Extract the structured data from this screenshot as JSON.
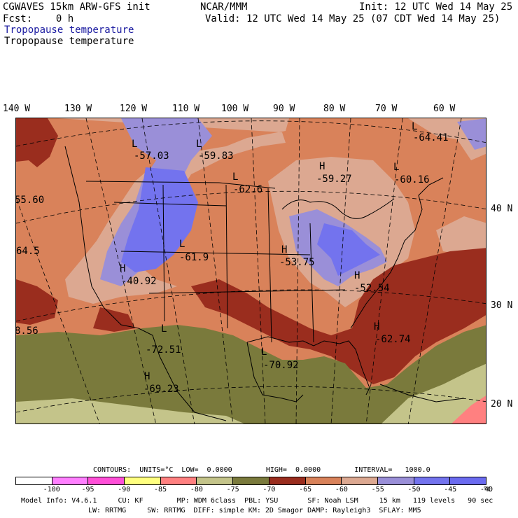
{
  "header": {
    "model": "CGWAVES 15km ARW-GFS init",
    "fcst": "Fcst:    0 h",
    "org": "NCAR/MMM",
    "init": "Init: 12 UTC Wed 14 May 25",
    "valid": "Valid: 12 UTC Wed 14 May 25 (07 CDT Wed 14 May 25)",
    "field1": "Tropopause temperature",
    "field2": "Tropopause temperature"
  },
  "longitudes": [
    "140 W",
    "130 W",
    "120 W",
    "110 W",
    "100 W",
    "90 W",
    "80 W",
    "70 W",
    "60 W"
  ],
  "latitudes": [
    "40 N",
    "30 N",
    "20 N"
  ],
  "pressure_centers": [
    {
      "type": "L",
      "value": "-57.03"
    },
    {
      "type": "L",
      "value": "-59.83"
    },
    {
      "type": "L",
      "value": "-64.41"
    },
    {
      "type": "H",
      "value": "-59.27"
    },
    {
      "type": "L",
      "value": "-60.16"
    },
    {
      "type": "L",
      "value": "-62.6"
    },
    {
      "type": "L",
      "value": "-61.9"
    },
    {
      "type": "H",
      "value": "-53.75"
    },
    {
      "type": "H",
      "value": "-40.92"
    },
    {
      "type": "H",
      "value": "-52.54"
    },
    {
      "type": "L",
      "value": "-72.51"
    },
    {
      "type": "L",
      "value": "-70.92"
    },
    {
      "type": "H",
      "value": "-62.74"
    },
    {
      "type": "H",
      "value": "-69.23"
    }
  ],
  "edge_values": [
    "55.60",
    "64.5",
    "8.56"
  ],
  "contours_line": "CONTOURS:  UNITS=°C  LOW=  0.0000        HIGH=  0.0000        INTERVAL=   1000.0",
  "colorbar": {
    "colors": [
      "#ffffff",
      "#ff7fff",
      "#ff4fd8",
      "#ffff7f",
      "#ff8080",
      "#c4c48a",
      "#7a7a3c",
      "#9a2d1e",
      "#d9825a",
      "#dca891",
      "#9a8fd8",
      "#7373ee",
      "#6b6bf0"
    ],
    "labels": [
      "-100",
      "-95",
      "-90",
      "-85",
      "-80",
      "-75",
      "-70",
      "-65",
      "-60",
      "-55",
      "-50",
      "-45",
      "-40"
    ],
    "unit": "°C"
  },
  "model_info_1": "Model Info: V4.6.1     CU: KF        MP: WDM 6class  PBL: YSU       SF: Noah LSM     15 km   119 levels   90 sec",
  "model_info_2": "LW: RRTMG     SW: RRTMG  DIFF: simple KM: 2D Smagor DAMP: Rayleigh3  SFLAY: MM5"
}
